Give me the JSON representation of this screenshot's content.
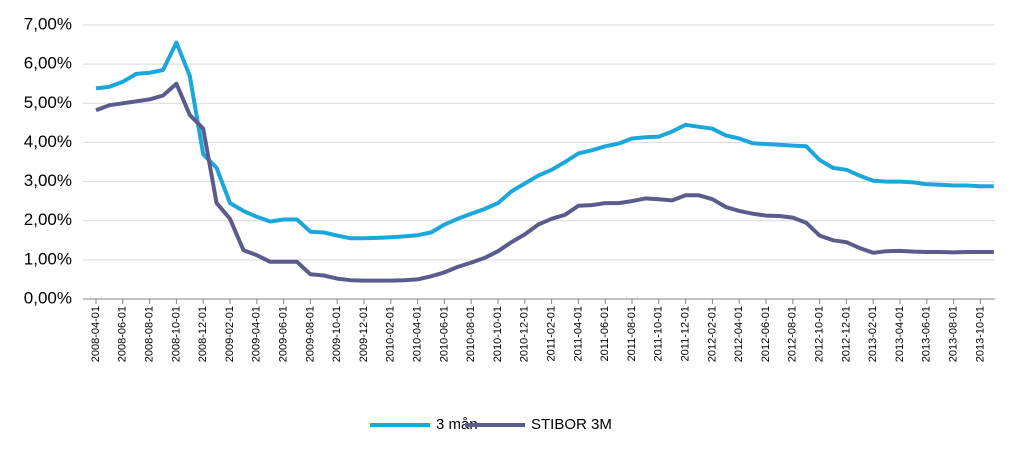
{
  "chart_data": {
    "type": "line",
    "x": [
      "2008-04-01",
      "2008-05-01",
      "2008-06-01",
      "2008-07-01",
      "2008-08-01",
      "2008-09-01",
      "2008-10-01",
      "2008-11-01",
      "2008-12-01",
      "2009-01-01",
      "2009-02-01",
      "2009-03-01",
      "2009-04-01",
      "2009-05-01",
      "2009-06-01",
      "2009-07-01",
      "2009-08-01",
      "2009-09-01",
      "2009-10-01",
      "2009-11-01",
      "2009-12-01",
      "2010-01-01",
      "2010-02-01",
      "2010-03-01",
      "2010-04-01",
      "2010-05-01",
      "2010-06-01",
      "2010-07-01",
      "2010-08-01",
      "2010-09-01",
      "2010-10-01",
      "2010-11-01",
      "2010-12-01",
      "2011-01-01",
      "2011-02-01",
      "2011-03-01",
      "2011-04-01",
      "2011-05-01",
      "2011-06-01",
      "2011-07-01",
      "2011-08-01",
      "2011-09-01",
      "2011-10-01",
      "2011-11-01",
      "2011-12-01",
      "2012-01-01",
      "2012-02-01",
      "2012-03-01",
      "2012-04-01",
      "2012-05-01",
      "2012-06-01",
      "2012-07-01",
      "2012-08-01",
      "2012-09-01",
      "2012-10-01",
      "2012-11-01",
      "2012-12-01",
      "2013-01-01",
      "2013-02-01",
      "2013-03-01",
      "2013-04-01",
      "2013-05-01",
      "2013-06-01",
      "2013-07-01",
      "2013-08-01",
      "2013-09-01",
      "2013-10-01",
      "2013-11-01"
    ],
    "xticks": [
      "2008-04-01",
      "2008-06-01",
      "2008-08-01",
      "2008-10-01",
      "2008-12-01",
      "2009-02-01",
      "2009-04-01",
      "2009-06-01",
      "2009-08-01",
      "2009-10-01",
      "2009-12-01",
      "2010-02-01",
      "2010-04-01",
      "2010-06-01",
      "2010-08-01",
      "2010-10-01",
      "2010-12-01",
      "2011-02-01",
      "2011-04-01",
      "2011-06-01",
      "2011-08-01",
      "2011-10-01",
      "2011-12-01",
      "2012-02-01",
      "2012-04-01",
      "2012-06-01",
      "2012-08-01",
      "2012-10-01",
      "2012-12-01",
      "2013-02-01",
      "2013-04-01",
      "2013-06-01",
      "2013-08-01",
      "2013-10-01"
    ],
    "series": [
      {
        "name": "3 mån",
        "color": "#1aa7dc",
        "values": [
          5.38,
          5.42,
          5.55,
          5.75,
          5.78,
          5.85,
          6.55,
          5.7,
          3.7,
          3.35,
          2.45,
          2.25,
          2.1,
          1.98,
          2.03,
          2.03,
          1.72,
          1.7,
          1.62,
          1.55,
          1.55,
          1.56,
          1.58,
          1.6,
          1.63,
          1.7,
          1.9,
          2.05,
          2.18,
          2.3,
          2.45,
          2.75,
          2.95,
          3.15,
          3.3,
          3.5,
          3.72,
          3.8,
          3.9,
          3.97,
          4.1,
          4.13,
          4.15,
          4.28,
          4.45,
          4.4,
          4.35,
          4.18,
          4.1,
          3.98,
          3.96,
          3.94,
          3.92,
          3.9,
          3.55,
          3.35,
          3.3,
          3.15,
          3.02,
          3.0,
          3.0,
          2.98,
          2.93,
          2.92,
          2.9,
          2.9,
          2.88,
          2.88
        ]
      },
      {
        "name": "STIBOR 3M",
        "color": "#5c5c8c",
        "values": [
          4.82,
          4.95,
          5.0,
          5.05,
          5.1,
          5.2,
          5.5,
          4.7,
          4.35,
          2.45,
          2.05,
          1.25,
          1.12,
          0.95,
          0.95,
          0.95,
          0.63,
          0.6,
          0.52,
          0.48,
          0.47,
          0.47,
          0.47,
          0.48,
          0.5,
          0.58,
          0.68,
          0.82,
          0.93,
          1.05,
          1.22,
          1.45,
          1.65,
          1.9,
          2.05,
          2.15,
          2.38,
          2.4,
          2.45,
          2.45,
          2.5,
          2.57,
          2.55,
          2.52,
          2.65,
          2.65,
          2.55,
          2.35,
          2.25,
          2.18,
          2.13,
          2.12,
          2.08,
          1.95,
          1.62,
          1.5,
          1.45,
          1.3,
          1.18,
          1.22,
          1.23,
          1.21,
          1.2,
          1.2,
          1.19,
          1.2,
          1.2,
          1.2
        ]
      }
    ],
    "ylim": [
      0,
      7
    ],
    "yticks": [
      {
        "value": 0,
        "label": "0,00%"
      },
      {
        "value": 1,
        "label": "1,00%"
      },
      {
        "value": 2,
        "label": "2,00%"
      },
      {
        "value": 3,
        "label": "3,00%"
      },
      {
        "value": 4,
        "label": "4,00%"
      },
      {
        "value": 5,
        "label": "5,00%"
      },
      {
        "value": 6,
        "label": "6,00%"
      },
      {
        "value": 7,
        "label": "7,00%"
      }
    ],
    "grid": true,
    "legend": "bottom"
  }
}
